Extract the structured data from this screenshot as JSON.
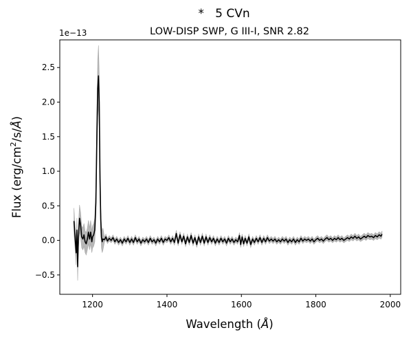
{
  "chart_data": {
    "type": "line",
    "suptitle": "*   5 CVn",
    "title": "LOW-DISP SWP, G III-I, SNR 2.82",
    "xlabel_main": "Wavelength (",
    "xlabel_unit": "Å",
    "xlabel_end": ")",
    "ylabel_main": "Flux (erg/cm",
    "ylabel_sup": "2",
    "ylabel_mid": "/s/",
    "ylabel_unit": "Å",
    "ylabel_end": ")",
    "y_offset_label": "1e−13",
    "xlim": [
      1112,
      2028
    ],
    "ylim": [
      -0.78,
      2.9
    ],
    "x_ticks": [
      1200,
      1400,
      1600,
      1800,
      2000
    ],
    "x_tick_labels": [
      "1200",
      "1400",
      "1600",
      "1800",
      "2000"
    ],
    "y_ticks": [
      -0.5,
      0.0,
      0.5,
      1.0,
      1.5,
      2.0,
      2.5
    ],
    "y_tick_labels": [
      "−0.5",
      "0.0",
      "0.5",
      "1.0",
      "1.5",
      "2.0",
      "2.5"
    ],
    "series": [
      {
        "color": "#000000",
        "points": [
          [
            1150,
            0.28
          ],
          [
            1153,
            0.05
          ],
          [
            1156,
            -0.18
          ],
          [
            1158,
            0.15
          ],
          [
            1160,
            -0.38
          ],
          [
            1162,
            0.05
          ],
          [
            1165,
            0.32
          ],
          [
            1168,
            0.22
          ],
          [
            1171,
            0.05
          ],
          [
            1174,
            0.02
          ],
          [
            1177,
            0.08
          ],
          [
            1180,
            -0.02
          ],
          [
            1183,
            -0.05
          ],
          [
            1186,
            0.02
          ],
          [
            1189,
            0.12
          ],
          [
            1192,
            0.02
          ],
          [
            1195,
            0.12
          ],
          [
            1198,
            -0.02
          ],
          [
            1200,
            0.05
          ],
          [
            1203,
            0.08
          ],
          [
            1206,
            0.15
          ],
          [
            1209,
            0.55
          ],
          [
            1212,
            1.6
          ],
          [
            1214,
            2.2
          ],
          [
            1216,
            2.38
          ],
          [
            1218,
            2.0
          ],
          [
            1220,
            0.9
          ],
          [
            1222,
            0.3
          ],
          [
            1224,
            0.05
          ],
          [
            1226,
            -0.02
          ],
          [
            1228,
            0.02
          ],
          [
            1232,
            0.01
          ],
          [
            1236,
            0.05
          ],
          [
            1240,
            -0.01
          ],
          [
            1245,
            0.03
          ],
          [
            1250,
            0.0
          ],
          [
            1255,
            0.04
          ],
          [
            1260,
            -0.02
          ],
          [
            1265,
            0.02
          ],
          [
            1270,
            -0.03
          ],
          [
            1275,
            0.01
          ],
          [
            1280,
            -0.04
          ],
          [
            1285,
            0.02
          ],
          [
            1290,
            -0.02
          ],
          [
            1295,
            0.03
          ],
          [
            1300,
            -0.03
          ],
          [
            1305,
            0.02
          ],
          [
            1310,
            -0.03
          ],
          [
            1315,
            0.04
          ],
          [
            1320,
            -0.02
          ],
          [
            1325,
            0.02
          ],
          [
            1330,
            -0.04
          ],
          [
            1335,
            0.01
          ],
          [
            1340,
            -0.02
          ],
          [
            1345,
            0.02
          ],
          [
            1350,
            -0.03
          ],
          [
            1355,
            0.03
          ],
          [
            1360,
            -0.02
          ],
          [
            1365,
            0.01
          ],
          [
            1370,
            -0.04
          ],
          [
            1375,
            0.02
          ],
          [
            1380,
            -0.02
          ],
          [
            1385,
            0.03
          ],
          [
            1390,
            -0.03
          ],
          [
            1395,
            0.02
          ],
          [
            1400,
            0.0
          ],
          [
            1405,
            0.04
          ],
          [
            1410,
            -0.02
          ],
          [
            1415,
            0.03
          ],
          [
            1420,
            -0.03
          ],
          [
            1425,
            0.1
          ],
          [
            1430,
            -0.04
          ],
          [
            1435,
            0.08
          ],
          [
            1440,
            -0.02
          ],
          [
            1445,
            0.06
          ],
          [
            1450,
            -0.05
          ],
          [
            1455,
            0.05
          ],
          [
            1460,
            -0.03
          ],
          [
            1465,
            0.07
          ],
          [
            1470,
            -0.04
          ],
          [
            1475,
            0.04
          ],
          [
            1480,
            -0.06
          ],
          [
            1485,
            0.05
          ],
          [
            1490,
            -0.03
          ],
          [
            1495,
            0.06
          ],
          [
            1500,
            -0.04
          ],
          [
            1505,
            0.05
          ],
          [
            1510,
            -0.03
          ],
          [
            1515,
            0.04
          ],
          [
            1520,
            -0.02
          ],
          [
            1525,
            0.03
          ],
          [
            1530,
            -0.04
          ],
          [
            1535,
            0.02
          ],
          [
            1540,
            -0.03
          ],
          [
            1545,
            0.03
          ],
          [
            1550,
            -0.02
          ],
          [
            1555,
            0.02
          ],
          [
            1560,
            -0.04
          ],
          [
            1565,
            0.03
          ],
          [
            1570,
            -0.02
          ],
          [
            1575,
            0.02
          ],
          [
            1580,
            -0.03
          ],
          [
            1585,
            0.01
          ],
          [
            1590,
            -0.02
          ],
          [
            1595,
            0.07
          ],
          [
            1598,
            -0.06
          ],
          [
            1602,
            0.05
          ],
          [
            1606,
            -0.05
          ],
          [
            1610,
            0.03
          ],
          [
            1615,
            -0.04
          ],
          [
            1620,
            0.05
          ],
          [
            1625,
            -0.06
          ],
          [
            1630,
            0.02
          ],
          [
            1635,
            -0.03
          ],
          [
            1640,
            0.03
          ],
          [
            1645,
            -0.02
          ],
          [
            1650,
            0.04
          ],
          [
            1655,
            -0.03
          ],
          [
            1660,
            0.03
          ],
          [
            1665,
            -0.02
          ],
          [
            1670,
            0.04
          ],
          [
            1675,
            -0.01
          ],
          [
            1680,
            0.02
          ],
          [
            1685,
            -0.01
          ],
          [
            1690,
            0.02
          ],
          [
            1695,
            -0.02
          ],
          [
            1700,
            0.01
          ],
          [
            1705,
            -0.02
          ],
          [
            1710,
            0.02
          ],
          [
            1715,
            -0.01
          ],
          [
            1720,
            0.02
          ],
          [
            1725,
            -0.03
          ],
          [
            1730,
            0.01
          ],
          [
            1735,
            -0.02
          ],
          [
            1740,
            0.02
          ],
          [
            1745,
            -0.03
          ],
          [
            1750,
            0.01
          ],
          [
            1755,
            -0.02
          ],
          [
            1760,
            0.03
          ],
          [
            1765,
            -0.01
          ],
          [
            1770,
            0.02
          ],
          [
            1775,
            0.0
          ],
          [
            1780,
            0.02
          ],
          [
            1785,
            -0.01
          ],
          [
            1790,
            0.02
          ],
          [
            1795,
            -0.02
          ],
          [
            1800,
            0.01
          ],
          [
            1805,
            0.03
          ],
          [
            1810,
            0.0
          ],
          [
            1815,
            0.02
          ],
          [
            1820,
            -0.01
          ],
          [
            1825,
            0.02
          ],
          [
            1830,
            0.04
          ],
          [
            1835,
            0.01
          ],
          [
            1840,
            0.03
          ],
          [
            1845,
            0.0
          ],
          [
            1850,
            0.03
          ],
          [
            1855,
            0.01
          ],
          [
            1860,
            0.04
          ],
          [
            1865,
            0.01
          ],
          [
            1870,
            0.03
          ],
          [
            1875,
            0.0
          ],
          [
            1880,
            0.02
          ],
          [
            1885,
            0.04
          ],
          [
            1890,
            0.02
          ],
          [
            1895,
            0.05
          ],
          [
            1900,
            0.03
          ],
          [
            1905,
            0.06
          ],
          [
            1910,
            0.03
          ],
          [
            1915,
            0.05
          ],
          [
            1920,
            0.02
          ],
          [
            1925,
            0.04
          ],
          [
            1930,
            0.06
          ],
          [
            1935,
            0.04
          ],
          [
            1940,
            0.07
          ],
          [
            1945,
            0.05
          ],
          [
            1950,
            0.06
          ],
          [
            1955,
            0.04
          ],
          [
            1960,
            0.07
          ],
          [
            1965,
            0.05
          ],
          [
            1970,
            0.08
          ],
          [
            1975,
            0.06
          ],
          [
            1978,
            0.09
          ]
        ]
      }
    ],
    "error_band_color": "#aaaaaa"
  }
}
